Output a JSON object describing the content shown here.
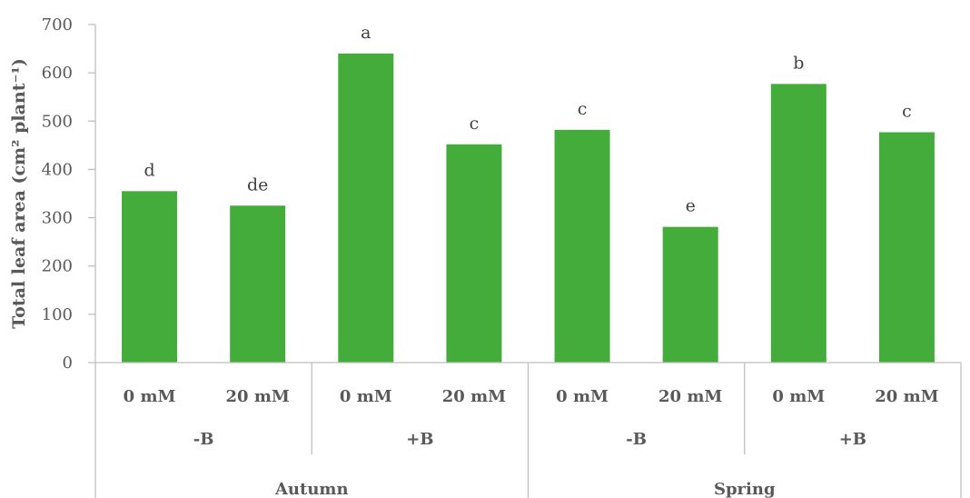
{
  "chart_data": {
    "type": "bar",
    "ylabel": "Total leaf area (cm² plant⁻¹)",
    "ylim": [
      0,
      700
    ],
    "yticks": [
      0,
      100,
      200,
      300,
      400,
      500,
      600,
      700
    ],
    "grid": false,
    "bar_color": "#43ac3a",
    "seasons": [
      "Autumn",
      "Spring"
    ],
    "boron_levels": [
      "-B",
      "+B",
      "-B",
      "+B"
    ],
    "categories": [
      "0 mM",
      "20 mM",
      "0 mM",
      "20 mM",
      "0 mM",
      "20 mM",
      "0 mM",
      "20 mM"
    ],
    "values": [
      355,
      325,
      640,
      452,
      482,
      281,
      577,
      477
    ],
    "letters": [
      "d",
      "de",
      "a",
      "c",
      "c",
      "e",
      "b",
      "c"
    ]
  }
}
